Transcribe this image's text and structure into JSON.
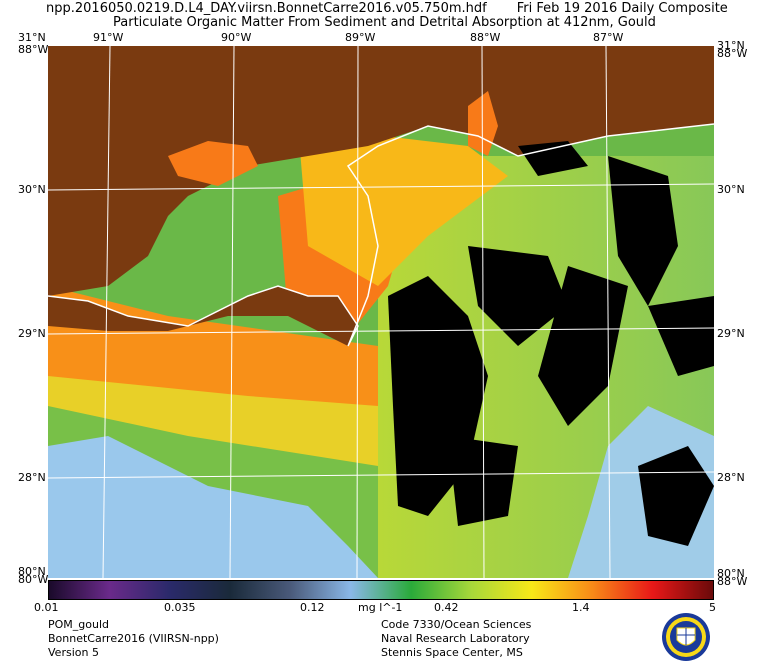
{
  "header": {
    "filename": "npp.2016050.0219.D.L4_DAY.viirsn.BonnetCarre2016.v05.750m.hdf",
    "date": "Fri Feb 19 2016 Daily Composite",
    "product_title": "Particulate Organic Matter From Sediment and Detrital Absorption at 412nm, Gould"
  },
  "map": {
    "lon_labels": [
      "91°W",
      "90°W",
      "89°W",
      "88°W",
      "87°W"
    ],
    "lat_labels": [
      "31°N",
      "30°N",
      "29°N",
      "28°N",
      "80°N"
    ],
    "corner_left_top": "88°W",
    "corner_right_top": "88°W",
    "corner_left_bottom": "80°W",
    "corner_right_bottom": "88°W",
    "colors": {
      "land": "#7a3a10",
      "no_data": "#000000",
      "grid": "#ffffff"
    }
  },
  "colorbar": {
    "ticks": [
      "0.01",
      "0.035",
      "0.12",
      "0.42",
      "1.4",
      "5"
    ],
    "units": "mg l^-1",
    "colors": [
      "#1a0a2a",
      "#6a2a8a",
      "#2a2a6a",
      "#1a2a3a",
      "#4a5a7a",
      "#8ab8e8",
      "#2aaa3a",
      "#a8d83a",
      "#f8e818",
      "#f88a18",
      "#e81818",
      "#6a0a0a"
    ]
  },
  "footer": {
    "left": [
      "POM_gould",
      "BonnetCarre2016 (VIIRSN-npp)",
      "Version 5"
    ],
    "right": [
      "Code 7330/Ocean Sciences",
      "Naval Research Laboratory",
      "Stennis Space Center, MS"
    ]
  }
}
